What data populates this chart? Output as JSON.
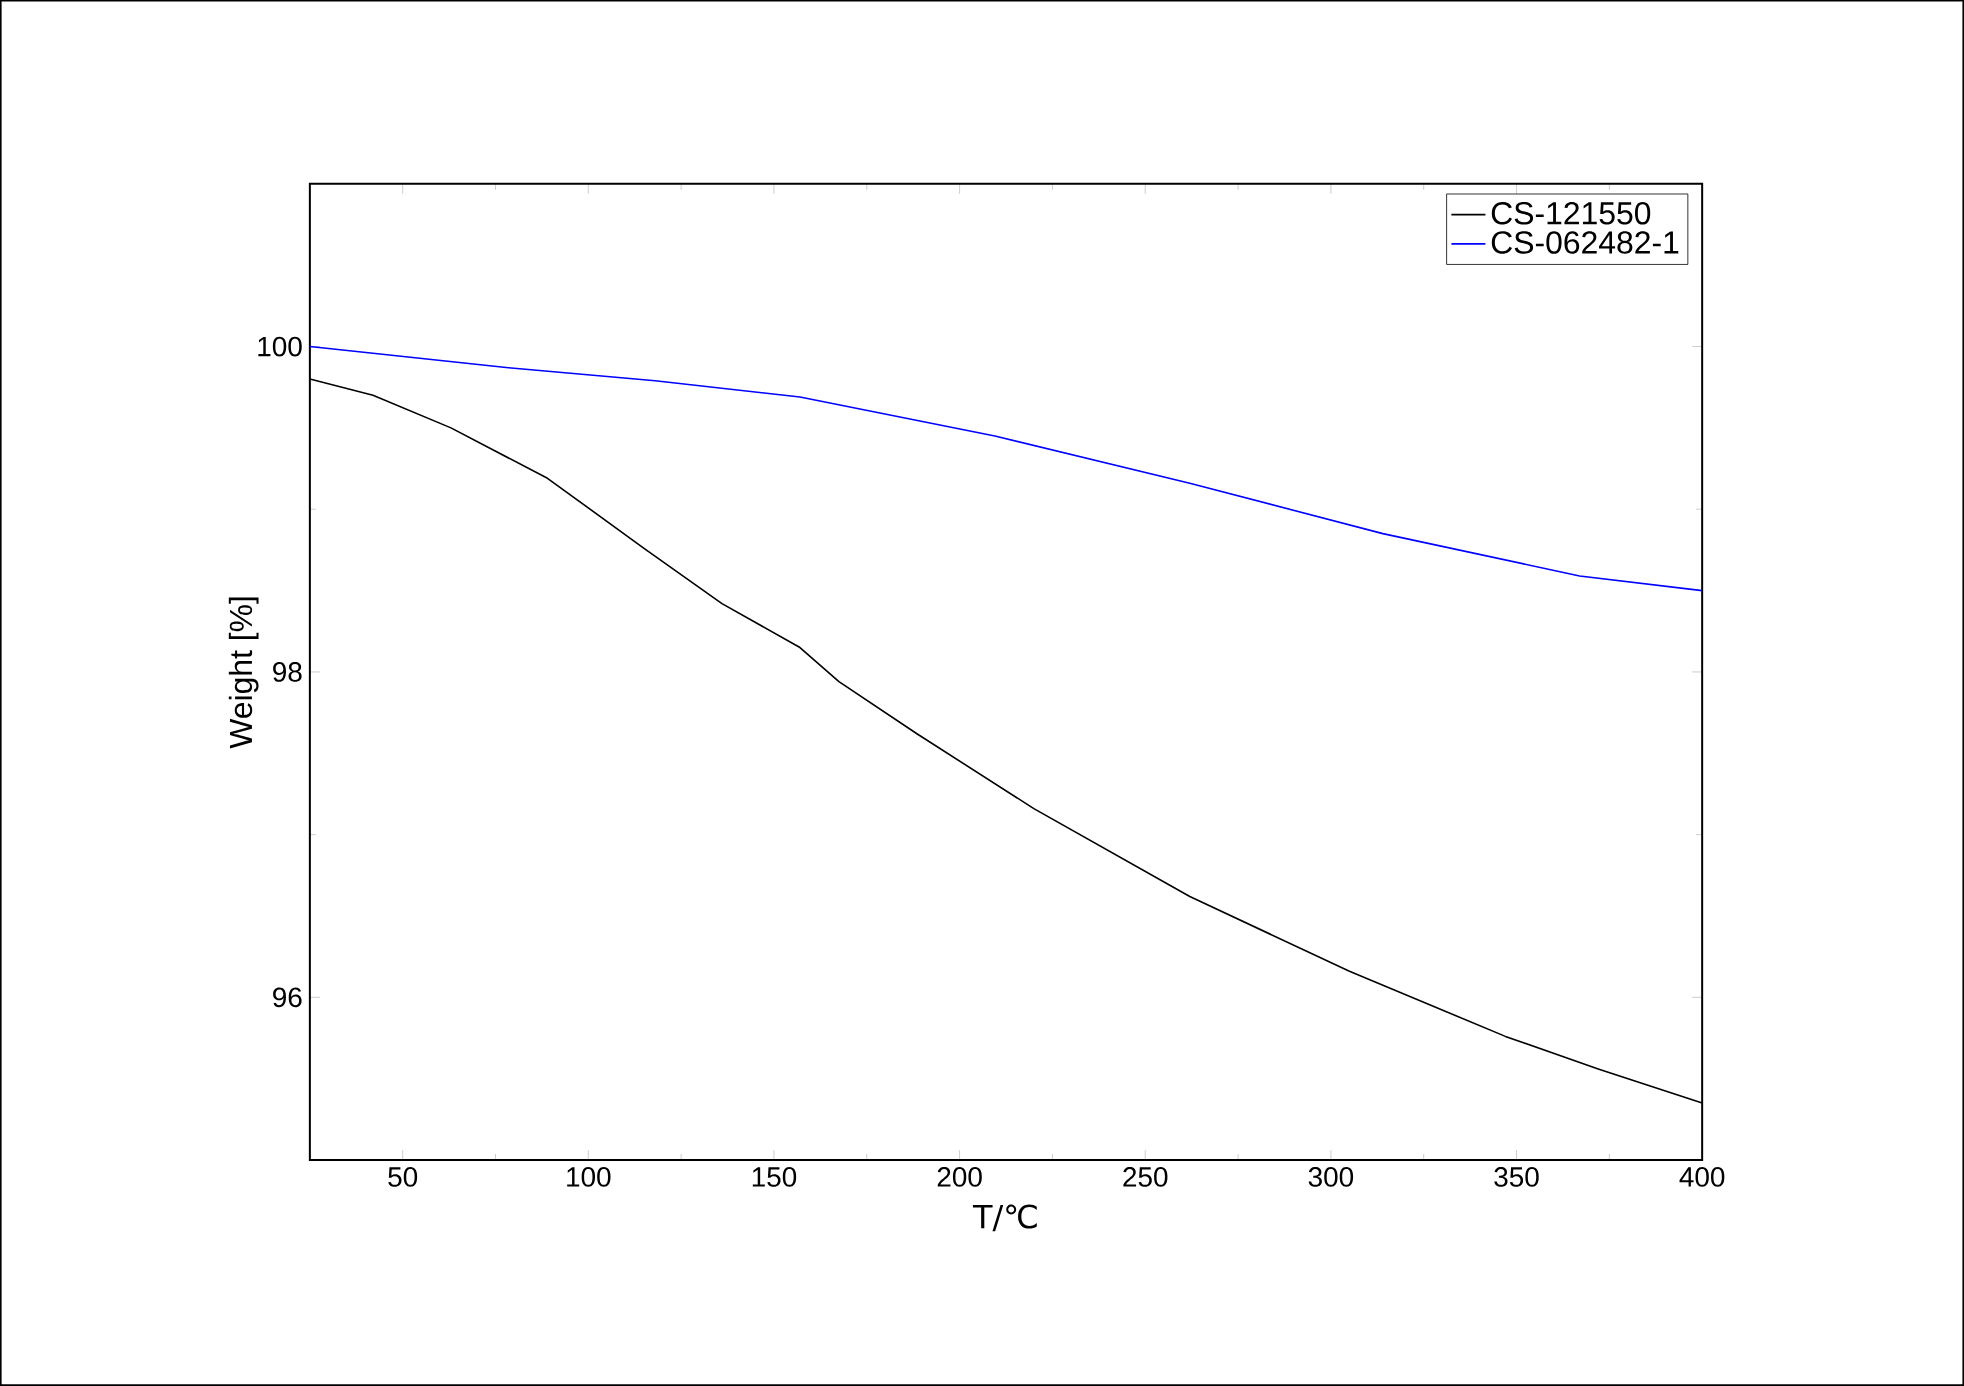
{
  "chart_data": {
    "type": "line",
    "xlabel": "T/℃",
    "ylabel": "Weight [%]",
    "xlim": [
      25,
      400
    ],
    "xticks": [
      50,
      100,
      150,
      200,
      250,
      300,
      350,
      400
    ],
    "ylim": [
      95,
      101
    ],
    "yticks": [
      96,
      98,
      100
    ],
    "legend": "top right",
    "grid": false,
    "marker": "none",
    "line_style": "solid",
    "series": [
      {
        "name": "CS-121550",
        "color": "#000000",
        "x": [
          25,
          42,
          63,
          89,
          115,
          136,
          157,
          167.5,
          188.5,
          220,
          262,
          305,
          347,
          372,
          400
        ],
        "values": [
          99.8,
          99.7,
          99.5,
          99.19,
          98.76,
          98.42,
          98.15,
          97.94,
          97.62,
          97.16,
          96.62,
          96.16,
          95.76,
          95.56,
          95.35
        ]
      },
      {
        "name": "CS-062482-1",
        "color": "#0000ff",
        "x": [
          25,
          78.5,
          118,
          157,
          209.5,
          262,
          314,
          367,
          400
        ],
        "values": [
          100.0,
          99.87,
          99.79,
          99.69,
          99.45,
          99.16,
          98.85,
          98.59,
          98.5
        ]
      }
    ]
  }
}
